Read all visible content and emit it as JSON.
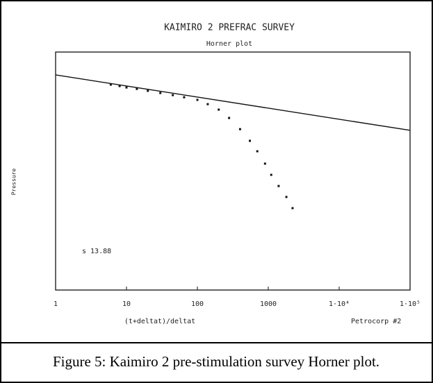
{
  "chart_data": {
    "type": "scatter",
    "title": "KAIMIRO 2 PREFRAC SURVEY",
    "subtitle": "Horner plot",
    "x_label": "(t+deltat)/deltat",
    "y_label": "Pressure",
    "annotations": [
      "s 13.88",
      "Petrocorp #2"
    ],
    "caption": "Figure 5: Kaimiro 2 pre-stimulation survey Horner plot.",
    "x_log": true,
    "xlim": [
      1,
      100000
    ],
    "xticks": [
      1,
      10,
      100,
      1000,
      {
        "value": 10000,
        "label": "1·10⁴"
      },
      {
        "value": 100000,
        "label": "1·10⁵"
      }
    ],
    "ylim": [
      0,
      100
    ],
    "series": [
      {
        "style": "line",
        "color": "#111111",
        "x": [
          1,
          100000
        ],
        "values": [
          90.4,
          67.1
        ]
      },
      {
        "style": "markers",
        "color": "#111111",
        "x": [
          6,
          8,
          10,
          14,
          20,
          30,
          45,
          65,
          100,
          140,
          200,
          280,
          400,
          550,
          700,
          900,
          1100,
          1400,
          1800,
          2200
        ],
        "values": [
          86.3,
          85.7,
          85.1,
          84.5,
          83.7,
          82.8,
          81.9,
          81.0,
          79.9,
          78.1,
          75.8,
          72.3,
          67.6,
          62.7,
          58.3,
          53.1,
          48.4,
          43.7,
          39.1,
          34.4
        ]
      }
    ]
  }
}
